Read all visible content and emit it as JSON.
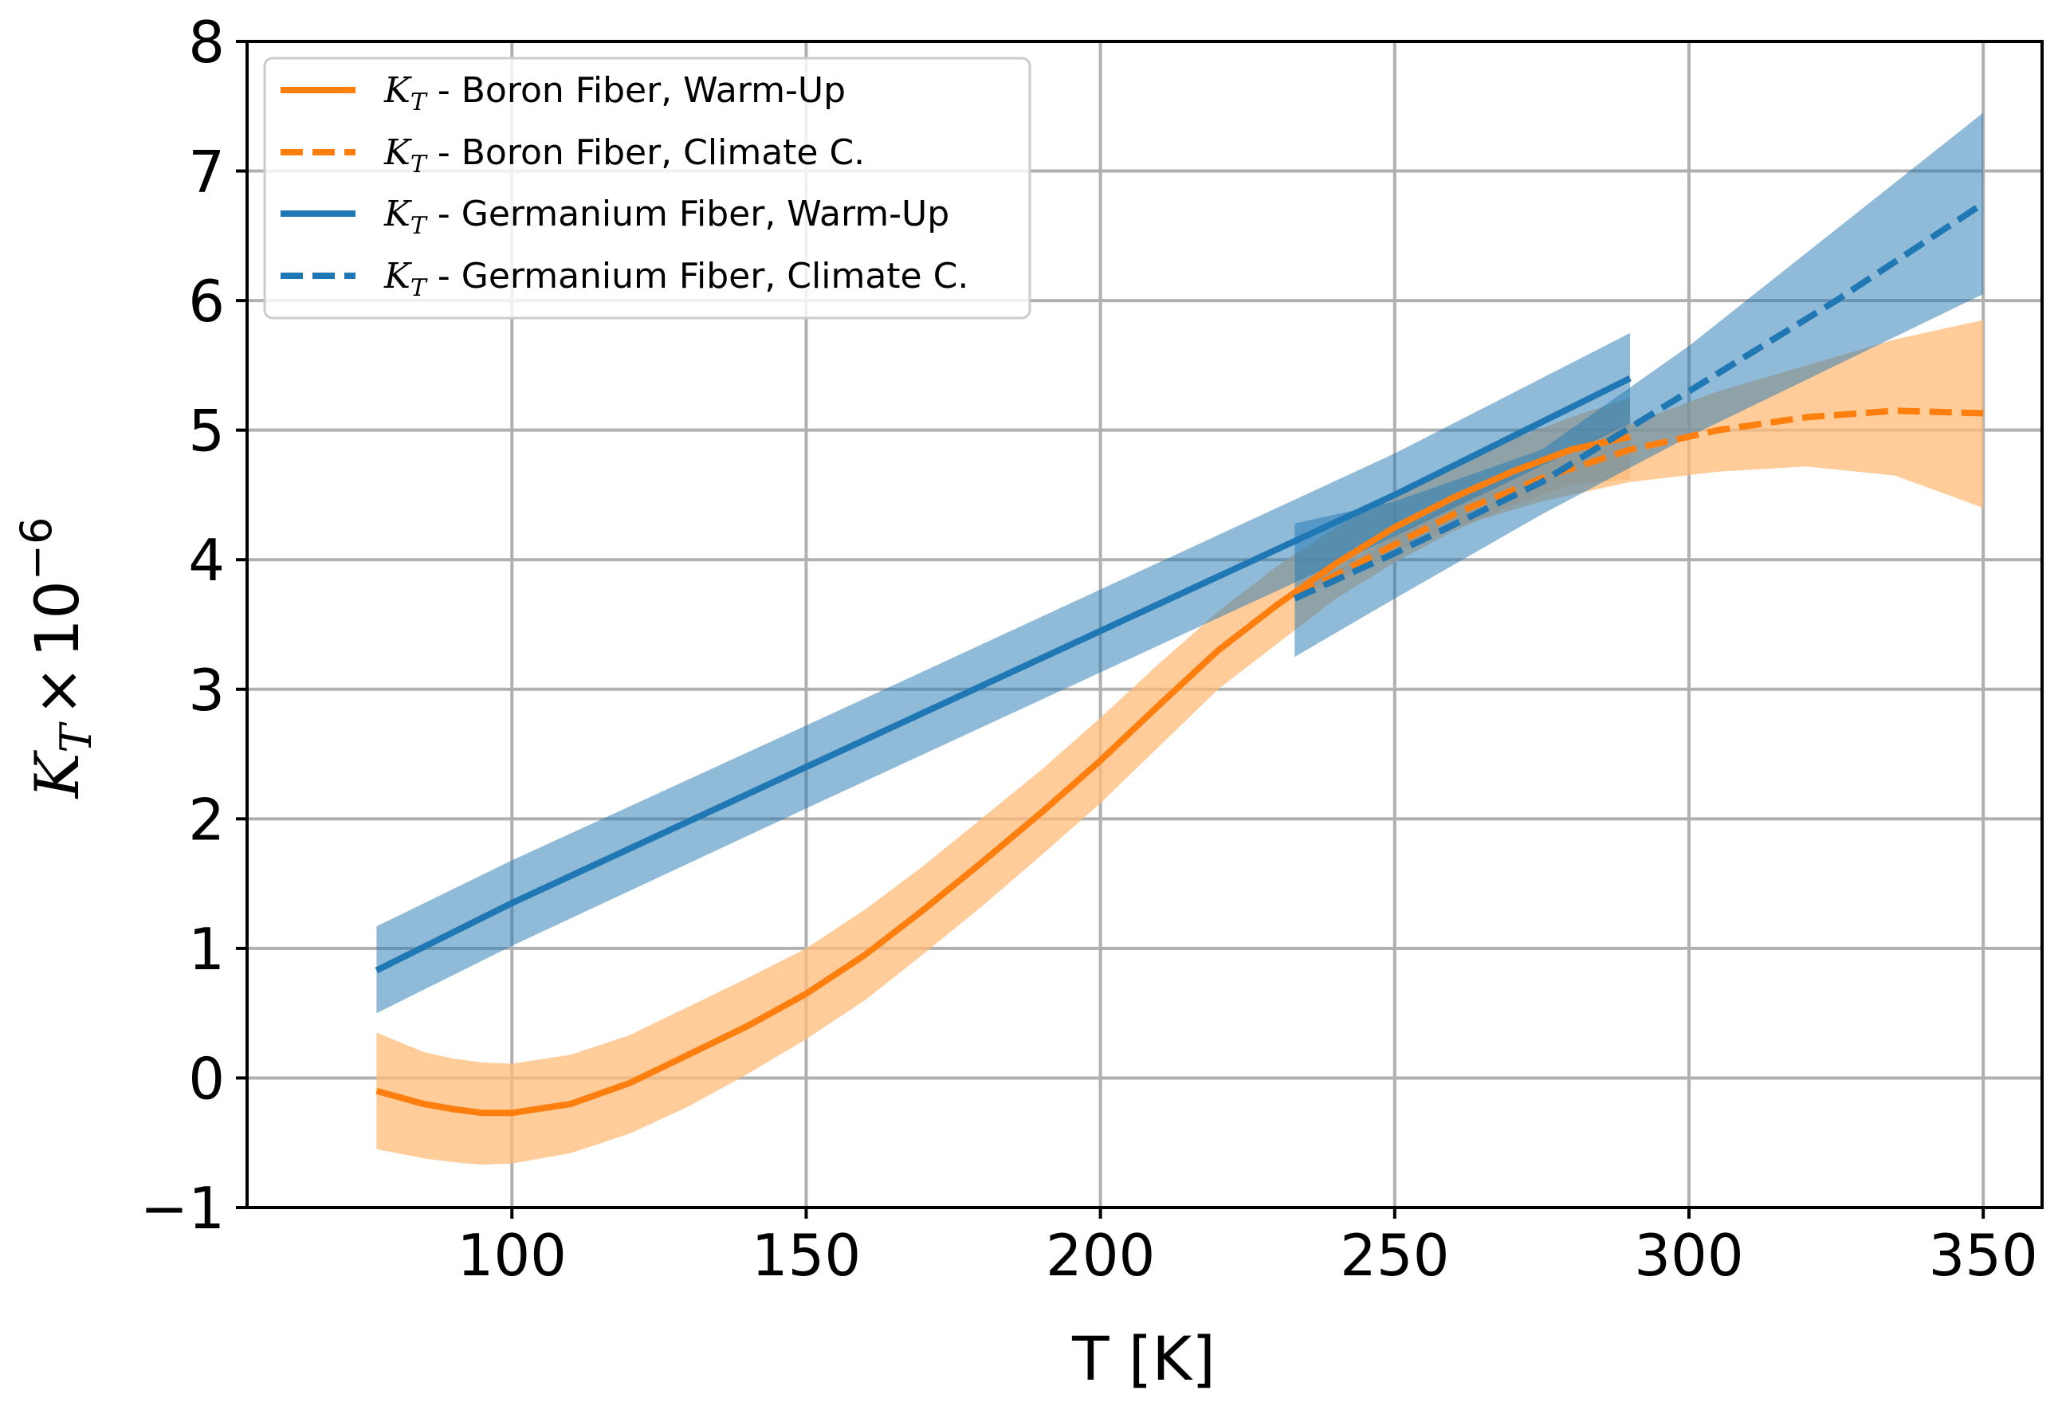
{
  "chart_data": {
    "type": "line",
    "xlabel": "T [K]",
    "ylabel_main": "K",
    "ylabel_sub": "T",
    "ylabel_times": "×",
    "ylabel_base": "10",
    "ylabel_exp": "−6",
    "xlim": [
      55,
      360
    ],
    "ylim": [
      -1,
      8
    ],
    "x_ticks": [
      100,
      150,
      200,
      250,
      300,
      350
    ],
    "x_tick_labels": [
      "100",
      "150",
      "200",
      "250",
      "300",
      "350"
    ],
    "y_ticks": [
      -1,
      0,
      1,
      2,
      3,
      4,
      5,
      6,
      7,
      8
    ],
    "y_tick_labels": [
      "−1",
      "0",
      "1",
      "2",
      "3",
      "4",
      "5",
      "6",
      "7",
      "8"
    ],
    "grid": true,
    "legend_position": "top-left",
    "series": [
      {
        "name": "K_T - Boron Fiber, Warm-Up",
        "legend_prefix": "K",
        "legend_sub": "T",
        "legend_text": " - Boron Fiber, Warm-Up",
        "color": "#ff7f0e",
        "band_color": "#ffbb78",
        "linestyle": "solid",
        "x": [
          77,
          85,
          90,
          95,
          100,
          110,
          120,
          130,
          140,
          150,
          160,
          170,
          180,
          190,
          200,
          210,
          220,
          230,
          240,
          250,
          260,
          270,
          280,
          290
        ],
        "y": [
          -0.1,
          -0.2,
          -0.24,
          -0.27,
          -0.27,
          -0.2,
          -0.04,
          0.18,
          0.4,
          0.65,
          0.95,
          1.3,
          1.67,
          2.05,
          2.45,
          2.88,
          3.3,
          3.65,
          3.97,
          4.25,
          4.48,
          4.68,
          4.85,
          4.95
        ],
        "lower": [
          -0.55,
          -0.62,
          -0.65,
          -0.67,
          -0.66,
          -0.58,
          -0.43,
          -0.22,
          0.03,
          0.3,
          0.6,
          0.96,
          1.33,
          1.72,
          2.12,
          2.56,
          3.0,
          3.35,
          3.7,
          3.98,
          4.22,
          4.42,
          4.58,
          4.62
        ],
        "upper": [
          0.35,
          0.2,
          0.15,
          0.12,
          0.11,
          0.18,
          0.33,
          0.55,
          0.77,
          1.0,
          1.3,
          1.64,
          2.01,
          2.38,
          2.78,
          3.2,
          3.6,
          3.95,
          4.25,
          4.52,
          4.74,
          4.93,
          5.1,
          5.25
        ]
      },
      {
        "name": "K_T - Boron Fiber, Climate C.",
        "legend_prefix": "K",
        "legend_sub": "T",
        "legend_text": " - Boron Fiber, Climate C.",
        "color": "#ff7f0e",
        "band_color": "#ffbb78",
        "linestyle": "dashed",
        "x": [
          233,
          245,
          260,
          275,
          290,
          305,
          320,
          335,
          350
        ],
        "y": [
          3.72,
          4.0,
          4.35,
          4.63,
          4.85,
          5.0,
          5.1,
          5.15,
          5.13
        ],
        "lower": [
          3.7,
          3.95,
          4.25,
          4.45,
          4.6,
          4.68,
          4.72,
          4.65,
          4.4
        ],
        "upper": [
          3.75,
          4.05,
          4.45,
          4.78,
          5.05,
          5.3,
          5.5,
          5.7,
          5.85
        ]
      },
      {
        "name": "K_T - Germanium Fiber, Warm-Up",
        "legend_prefix": "K",
        "legend_sub": "T",
        "legend_text": " - Germanium Fiber, Warm-Up",
        "color": "#1f77b4",
        "band_color": "#1f77b4",
        "linestyle": "solid",
        "x": [
          77,
          100,
          150,
          200,
          250,
          290
        ],
        "y": [
          0.83,
          1.35,
          2.4,
          3.45,
          4.5,
          5.4
        ],
        "lower": [
          0.5,
          1.02,
          2.08,
          3.13,
          4.18,
          5.05
        ],
        "upper": [
          1.17,
          1.68,
          2.72,
          3.77,
          4.82,
          5.75
        ]
      },
      {
        "name": "K_T - Germanium Fiber, Climate C.",
        "legend_prefix": "K",
        "legend_sub": "T",
        "legend_text": " - Germanium Fiber, Climate C.",
        "color": "#1f77b4",
        "band_color": "#1f77b4",
        "linestyle": "dashed",
        "x": [
          233,
          250,
          275,
          300,
          325,
          350
        ],
        "y": [
          3.7,
          4.05,
          4.6,
          5.3,
          6.0,
          6.75
        ],
        "lower": [
          3.25,
          3.7,
          4.35,
          4.95,
          5.5,
          6.05
        ],
        "upper": [
          4.28,
          4.45,
          4.85,
          5.65,
          6.55,
          7.45
        ]
      }
    ]
  }
}
